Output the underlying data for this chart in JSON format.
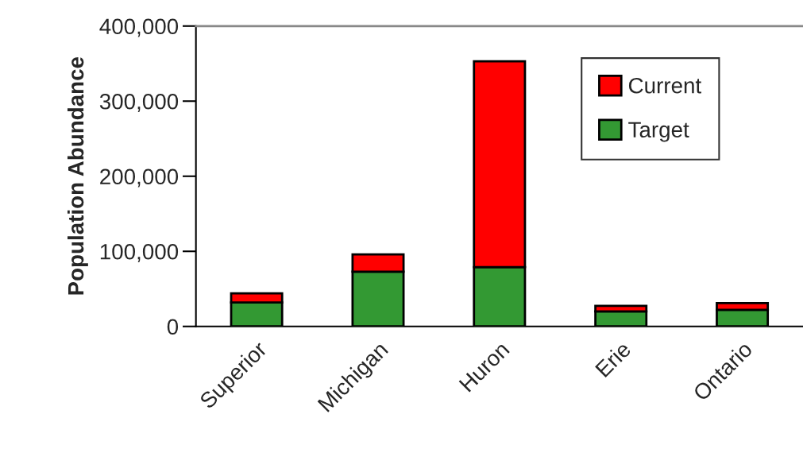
{
  "chart_data": {
    "type": "bar",
    "stacked": true,
    "ylabel": "Population Abundance",
    "categories": [
      "Superior",
      "Michigan",
      "Huron",
      "Erie",
      "Ontario"
    ],
    "series": [
      {
        "name": "Target",
        "color": "#339933",
        "values": [
          32000,
          73000,
          79000,
          20000,
          22000
        ]
      },
      {
        "name": "Current",
        "color": "#ff0000",
        "values": [
          12000,
          23000,
          274000,
          7500,
          9000
        ]
      }
    ],
    "ylim": [
      0,
      400000
    ],
    "yticks": [
      {
        "value": 0,
        "label": "0"
      },
      {
        "value": 100000,
        "label": "100,000"
      },
      {
        "value": 200000,
        "label": "200,000"
      },
      {
        "value": 300000,
        "label": "300,000"
      },
      {
        "value": 400000,
        "label": "400,000"
      }
    ],
    "grid": false,
    "legend": "top right"
  }
}
